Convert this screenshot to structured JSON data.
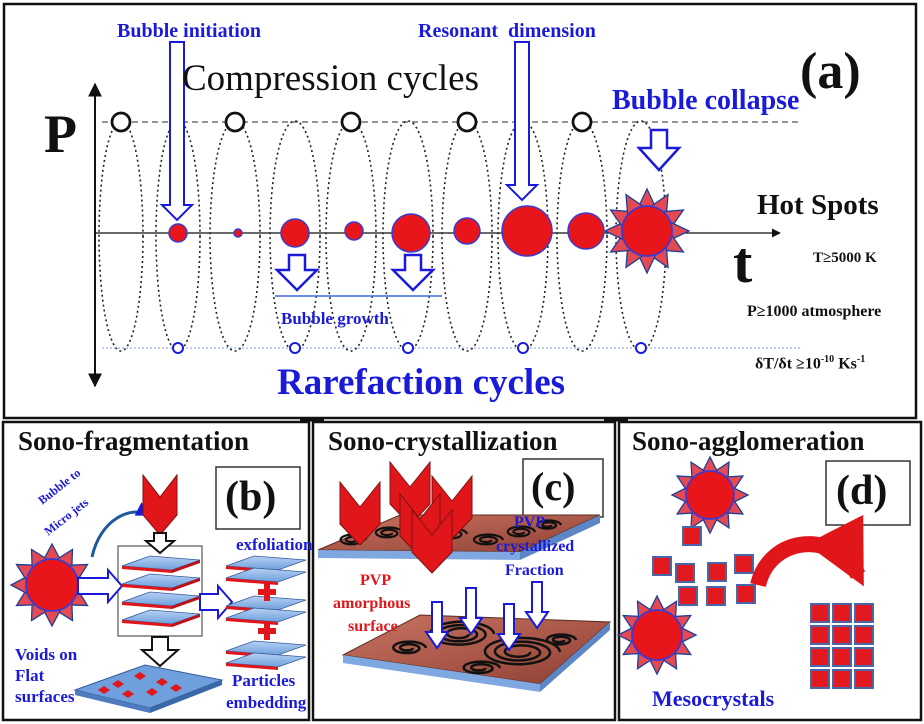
{
  "panel_a": {
    "label": "(a)",
    "p_axis": "P",
    "t_axis": "t",
    "compression": "Compression cycles",
    "rarefaction": "Rarefaction cycles",
    "bubble_initiation": "Bubble initiation",
    "resonant_dimension": "Resonant  dimension",
    "bubble_collapse": "Bubble collapse",
    "bubble_growth": "Bubble growth",
    "hot_spots": {
      "title": "Hot Spots",
      "temp": "T≥5000 K",
      "pressure": "P≥1000 atmosphere",
      "rate_base": "δT/δt ≥10",
      "rate_exp": "-10",
      "rate_unit": " Ks",
      "rate_unit_exp": "-1"
    }
  },
  "panel_b": {
    "title": "Sono-fragmentation",
    "label": "(b)",
    "bubble_to": "Bubble to",
    "micro_jets": "Micro jets",
    "exfoliation": "exfoliation",
    "voids_line1": "Voids on",
    "voids_line2": "Flat",
    "voids_line3": "surfaces",
    "particles_line1": "Particles",
    "particles_line2": "embedding"
  },
  "panel_c": {
    "title": "Sono-crystallization",
    "label": "(c)",
    "pvp_cryst_1": "PVP",
    "pvp_cryst_2": "crystallized",
    "pvp_cryst_3": "Fraction",
    "pvp_amorph_1": "PVP",
    "pvp_amorph_2": "amorphous",
    "pvp_amorph_3": "surface"
  },
  "panel_d": {
    "title": "Sono-agglomeration",
    "label": "(d)",
    "mesocrystals": "Mesocrystals"
  },
  "colors": {
    "text_blue": "#1a1ad9",
    "bubble_red": "#e8151b",
    "bubble_edge": "#3b3bd0",
    "arrow_red": "#e0161b",
    "sheet_blue": "#8fb4e8",
    "plate_brown": "#a8554a",
    "square_red": "#e21a1f",
    "square_edge": "#4866a8"
  }
}
